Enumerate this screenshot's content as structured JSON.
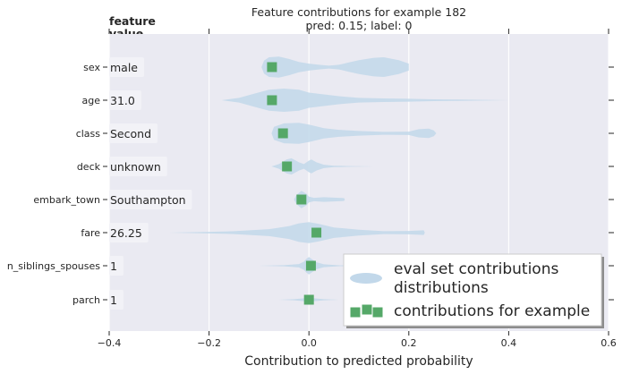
{
  "chart_data": {
    "type": "violin+scatter",
    "title": "Feature contributions for example 182",
    "subtitle": "pred: 0.15; label: 0",
    "xlabel": "Contribution to predicted probability",
    "value_column_header": "feature\nvalue",
    "xlim": [
      -0.4,
      0.6
    ],
    "x_ticks": [
      -0.4,
      -0.2,
      0.0,
      0.2,
      0.4,
      0.6
    ],
    "x_tick_labels": [
      "−0.4",
      "−0.2",
      "0.0",
      "0.2",
      "0.4",
      "0.6"
    ],
    "grid": true,
    "legend_position": "lower-right",
    "features": [
      {
        "name": "sex",
        "value": "male",
        "contribution": -0.074,
        "dist": [
          [
            -0.095,
            0.0
          ],
          [
            -0.09,
            0.55
          ],
          [
            -0.08,
            0.85
          ],
          [
            -0.06,
            0.9
          ],
          [
            -0.04,
            0.7
          ],
          [
            -0.02,
            0.45
          ],
          [
            0.0,
            0.3
          ],
          [
            0.02,
            0.2
          ],
          [
            0.04,
            0.12
          ],
          [
            0.06,
            0.2
          ],
          [
            0.08,
            0.4
          ],
          [
            0.1,
            0.6
          ],
          [
            0.13,
            0.8
          ],
          [
            0.15,
            0.85
          ],
          [
            0.18,
            0.6
          ],
          [
            0.2,
            0.3
          ],
          [
            0.2,
            0.0
          ]
        ]
      },
      {
        "name": "age",
        "value": "31.0",
        "contribution": -0.074,
        "dist": [
          [
            -0.175,
            0.0
          ],
          [
            -0.14,
            0.2
          ],
          [
            -0.11,
            0.55
          ],
          [
            -0.08,
            0.9
          ],
          [
            -0.05,
            1.0
          ],
          [
            -0.02,
            0.9
          ],
          [
            0.0,
            0.65
          ],
          [
            0.03,
            0.5
          ],
          [
            0.06,
            0.35
          ],
          [
            0.1,
            0.2
          ],
          [
            0.15,
            0.15
          ],
          [
            0.2,
            0.12
          ],
          [
            0.25,
            0.08
          ],
          [
            0.3,
            0.05
          ],
          [
            0.4,
            0.0
          ]
        ]
      },
      {
        "name": "class",
        "value": "Second",
        "contribution": -0.052,
        "dist": [
          [
            -0.075,
            0.0
          ],
          [
            -0.07,
            0.55
          ],
          [
            -0.05,
            0.85
          ],
          [
            -0.02,
            0.9
          ],
          [
            0.0,
            0.75
          ],
          [
            0.03,
            0.45
          ],
          [
            0.06,
            0.3
          ],
          [
            0.1,
            0.2
          ],
          [
            0.15,
            0.12
          ],
          [
            0.2,
            0.15
          ],
          [
            0.22,
            0.35
          ],
          [
            0.24,
            0.4
          ],
          [
            0.25,
            0.25
          ],
          [
            0.255,
            0.0
          ]
        ]
      },
      {
        "name": "deck",
        "value": "unknown",
        "contribution": -0.044,
        "dist": [
          [
            -0.075,
            0.0
          ],
          [
            -0.06,
            0.2
          ],
          [
            -0.045,
            0.6
          ],
          [
            -0.035,
            0.7
          ],
          [
            -0.02,
            0.35
          ],
          [
            -0.01,
            0.2
          ],
          [
            0.0,
            0.5
          ],
          [
            0.005,
            0.6
          ],
          [
            0.015,
            0.35
          ],
          [
            0.03,
            0.15
          ],
          [
            0.05,
            0.06
          ],
          [
            0.08,
            0.03
          ],
          [
            0.13,
            0.0
          ]
        ]
      },
      {
        "name": "embark_town",
        "value": "Southampton",
        "contribution": -0.015,
        "dist": [
          [
            -0.03,
            0.0
          ],
          [
            -0.025,
            0.4
          ],
          [
            -0.015,
            0.75
          ],
          [
            -0.005,
            0.5
          ],
          [
            0.0,
            0.25
          ],
          [
            0.01,
            0.15
          ],
          [
            0.03,
            0.2
          ],
          [
            0.06,
            0.15
          ],
          [
            0.07,
            0.12
          ],
          [
            0.072,
            0.0
          ]
        ]
      },
      {
        "name": "fare",
        "value": "26.25",
        "contribution": 0.015,
        "dist": [
          [
            -0.28,
            0.0
          ],
          [
            -0.22,
            0.05
          ],
          [
            -0.15,
            0.12
          ],
          [
            -0.08,
            0.3
          ],
          [
            -0.04,
            0.55
          ],
          [
            -0.02,
            0.8
          ],
          [
            0.0,
            0.9
          ],
          [
            0.02,
            0.75
          ],
          [
            0.05,
            0.45
          ],
          [
            0.1,
            0.25
          ],
          [
            0.15,
            0.12
          ],
          [
            0.2,
            0.15
          ],
          [
            0.23,
            0.2
          ],
          [
            0.232,
            0.0
          ]
        ]
      },
      {
        "name": "n_siblings_spouses",
        "value": "1",
        "contribution": 0.004,
        "dist": [
          [
            -0.1,
            0.0
          ],
          [
            -0.05,
            0.05
          ],
          [
            -0.02,
            0.15
          ],
          [
            -0.01,
            0.35
          ],
          [
            -0.005,
            0.6
          ],
          [
            0.0,
            0.75
          ],
          [
            0.005,
            0.6
          ],
          [
            0.015,
            0.3
          ],
          [
            0.03,
            0.12
          ],
          [
            0.06,
            0.04
          ],
          [
            0.1,
            0.0
          ]
        ]
      },
      {
        "name": "parch",
        "value": "1",
        "contribution": 0.0,
        "dist": [
          [
            -0.06,
            0.0
          ],
          [
            -0.03,
            0.05
          ],
          [
            -0.01,
            0.12
          ],
          [
            0.0,
            0.2
          ],
          [
            0.01,
            0.12
          ],
          [
            0.03,
            0.05
          ],
          [
            0.06,
            0.0
          ]
        ]
      }
    ],
    "legend": [
      {
        "label": "eval set contributions\ndistributions",
        "marker": "violin",
        "color": "#c2d8ea"
      },
      {
        "label": "contributions for example",
        "marker": "square",
        "color": "#55a868"
      }
    ],
    "colors": {
      "plot_background": "#eaeaf2",
      "violin": "#c2d8ea",
      "marker": "#55a868",
      "grid": "#ffffff",
      "value_box": "#f2f2f7"
    }
  }
}
